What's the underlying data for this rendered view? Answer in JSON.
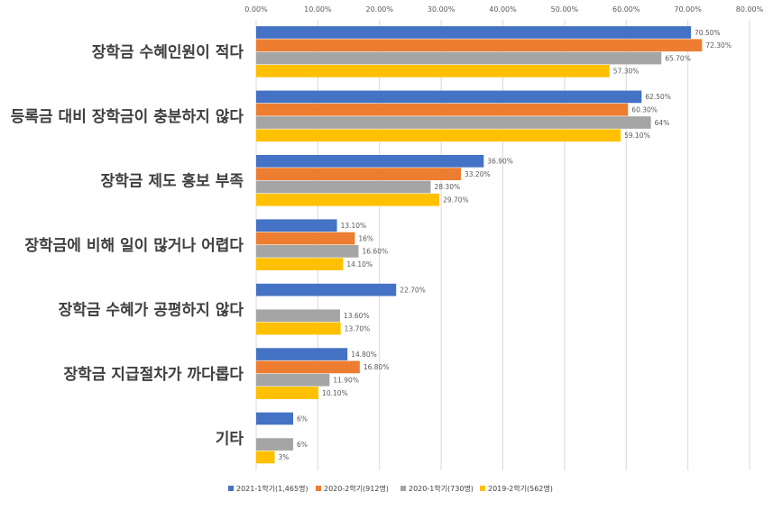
{
  "chart_data": {
    "type": "bar",
    "orientation": "horizontal",
    "categories": [
      "장학금 수혜인원이 적다",
      "등록금 대비 장학금이 충분하지 않다",
      "장학금 제도 홍보 부족",
      "장학금에 비해 일이 많거나 어렵다",
      "장학금 수혜가 공평하지 않다",
      "장학금 지급절차가 까다롭다",
      "기타"
    ],
    "series": [
      {
        "name": "2021-1학기(1,465명)",
        "color": "#4472c4",
        "values": [
          70.5,
          62.5,
          36.9,
          13.1,
          22.7,
          14.8,
          6
        ],
        "labels": [
          "70.50%",
          "62.50%",
          "36.90%",
          "13.10%",
          "22.70%",
          "14.80%",
          "6%"
        ]
      },
      {
        "name": "2020-2학기(912명)",
        "color": "#ed7d31",
        "values": [
          72.3,
          60.3,
          33.2,
          16,
          null,
          16.8,
          null
        ],
        "labels": [
          "72.30%",
          "60.30%",
          "33.20%",
          "16%",
          null,
          "16.80%",
          null
        ]
      },
      {
        "name": "2020-1학기(730명)",
        "color": "#a5a5a5",
        "values": [
          65.7,
          64,
          28.3,
          16.6,
          13.6,
          11.9,
          6
        ],
        "labels": [
          "65.70%",
          "64%",
          "28.30%",
          "16.60%",
          "13.60%",
          "11.90%",
          "6%"
        ]
      },
      {
        "name": "2019-2학기(562명)",
        "color": "#ffc000",
        "values": [
          57.3,
          59.1,
          29.7,
          14.1,
          13.7,
          10.1,
          3
        ],
        "labels": [
          "57.30%",
          "59.10%",
          "29.70%",
          "14.10%",
          "13.70%",
          "10.10%",
          "3%"
        ]
      }
    ],
    "x_ticks": [
      "0.00%",
      "10.00%",
      "20.00%",
      "30.00%",
      "40.00%",
      "50.00%",
      "60.00%",
      "70.00%",
      "80.00%"
    ],
    "xlim": [
      0,
      80
    ],
    "grid": true,
    "x_axis_position": "top",
    "legend_position": "bottom"
  }
}
